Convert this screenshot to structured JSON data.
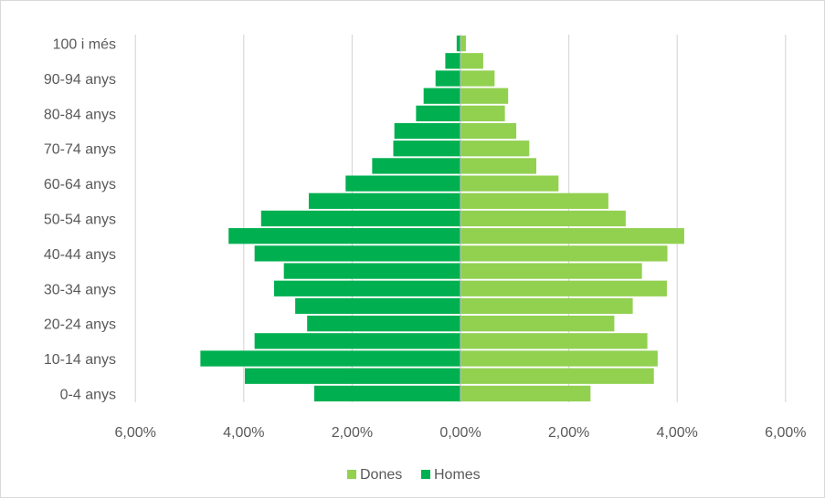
{
  "chart_data": {
    "type": "bar",
    "orientation": "horizontal",
    "layout": "population-pyramid",
    "categories": [
      "0-4 anys",
      "5-9 anys",
      "10-14 anys",
      "15-19 anys",
      "20-24 anys",
      "25-29 anys",
      "30-34 anys",
      "35-39 anys",
      "40-44 anys",
      "45-49 anys",
      "50-54 anys",
      "55-59 anys",
      "60-64 anys",
      "65-69 anys",
      "70-74 anys",
      "75-79 anys",
      "80-84 anys",
      "85-89 anys",
      "90-94 anys",
      "95-99 anys",
      "100 i més"
    ],
    "visible_category_labels": [
      "0-4 anys",
      "",
      "10-14 anys",
      "",
      "20-24 anys",
      "",
      "30-34 anys",
      "",
      "40-44 anys",
      "",
      "50-54 anys",
      "",
      "60-64 anys",
      "",
      "70-74 anys",
      "",
      "80-84 anys",
      "",
      "90-94 anys",
      "",
      "100 i més"
    ],
    "series": [
      {
        "name": "Dones",
        "color": "#92d050",
        "side": "right",
        "values": [
          2.4,
          3.57,
          3.64,
          3.45,
          2.84,
          3.18,
          3.81,
          3.35,
          3.82,
          4.13,
          3.05,
          2.73,
          1.81,
          1.4,
          1.27,
          1.03,
          0.82,
          0.88,
          0.63,
          0.42,
          0.1
        ]
      },
      {
        "name": "Homes",
        "color": "#00b050",
        "side": "left",
        "values": [
          2.7,
          3.98,
          4.8,
          3.8,
          2.83,
          3.05,
          3.44,
          3.26,
          3.8,
          4.28,
          3.68,
          2.8,
          2.12,
          1.63,
          1.24,
          1.22,
          0.82,
          0.68,
          0.46,
          0.28,
          0.07
        ]
      }
    ],
    "x_ticks": [
      "6,00%",
      "4,00%",
      "2,00%",
      "0,00%",
      "2,00%",
      "4,00%",
      "6,00%"
    ],
    "xlim": [
      -6,
      6
    ],
    "xlabel": "",
    "ylabel": "",
    "title": "",
    "grid": "vertical",
    "grid_color": "#d9d9d9",
    "legend": {
      "position": "bottom",
      "entries": [
        "Dones",
        "Homes"
      ]
    }
  }
}
